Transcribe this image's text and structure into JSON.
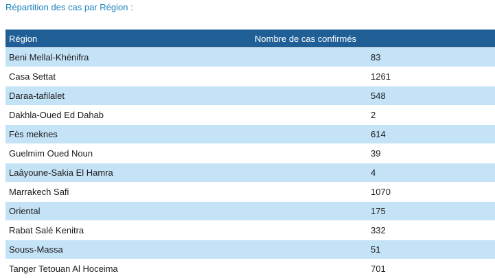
{
  "section": {
    "title": "Répartition des cas par Région :"
  },
  "table": {
    "headers": {
      "region": "Région",
      "count": "Nombre de cas confirmés"
    },
    "rows": [
      {
        "region": "Beni Mellal-Khénifra",
        "count": "83"
      },
      {
        "region": "Casa Settat",
        "count": "1261"
      },
      {
        "region": "Daraa-tafilalet",
        "count": "548"
      },
      {
        "region": "Dakhla-Oued Ed Dahab",
        "count": "2"
      },
      {
        "region": "Fès meknes",
        "count": "614"
      },
      {
        "region": "Guelmim Oued Noun",
        "count": "39"
      },
      {
        "region": "Laâyoune-Sakia El Hamra",
        "count": "4"
      },
      {
        "region": "Marrakech Safi",
        "count": "1070"
      },
      {
        "region": "Oriental",
        "count": "175"
      },
      {
        "region": "Rabat Salé Kenitra",
        "count": "332"
      },
      {
        "region": "Souss-Massa",
        "count": "51"
      },
      {
        "region": "Tanger Tetouan Al Hoceima",
        "count": "701"
      }
    ]
  },
  "colors": {
    "title": "#1a7fbf",
    "header_bg": "#1f5f96",
    "row_stripe": "#c5e3f7",
    "row_plain": "#ffffff"
  }
}
